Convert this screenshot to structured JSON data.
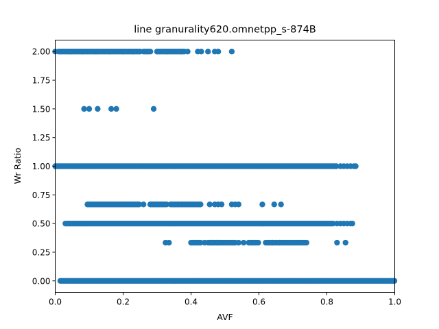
{
  "chart_data": {
    "type": "scatter",
    "title": "line granurality620.omnetpp_s-874B",
    "xlabel": "AVF",
    "ylabel": "Wr Ratio",
    "xlim": [
      0.0,
      1.0
    ],
    "ylim": [
      -0.1,
      2.1
    ],
    "x_ticks": [
      "0.0",
      "0.2",
      "0.4",
      "0.6",
      "0.8",
      "1.0"
    ],
    "y_ticks": [
      "0.00",
      "0.25",
      "0.50",
      "0.75",
      "1.00",
      "1.25",
      "1.50",
      "1.75",
      "2.00"
    ],
    "grid": false,
    "color": "#1f77b4",
    "series": [
      {
        "y": 2.0,
        "x_ranges": [
          [
            0.01,
            0.25
          ],
          [
            0.26,
            0.28
          ],
          [
            0.3,
            0.38
          ]
        ],
        "x_points": [
          0.0,
          0.045,
          0.08,
          0.12,
          0.16,
          0.2,
          0.23,
          0.3,
          0.33,
          0.37,
          0.39,
          0.42,
          0.43,
          0.45,
          0.47,
          0.48,
          0.52
        ]
      },
      {
        "y": 1.5,
        "x_ranges": [],
        "x_points": [
          0.085,
          0.1,
          0.125,
          0.165,
          0.18,
          0.29
        ]
      },
      {
        "y": 1.0,
        "x_ranges": [
          [
            0.0,
            0.83
          ]
        ],
        "x_points": [
          0.84,
          0.85,
          0.86,
          0.87,
          0.88,
          0.885
        ]
      },
      {
        "y": 0.6667,
        "x_ranges": [
          [
            0.095,
            0.25
          ],
          [
            0.28,
            0.33
          ],
          [
            0.34,
            0.43
          ]
        ],
        "x_points": [
          0.26,
          0.455,
          0.47,
          0.48,
          0.49,
          0.52,
          0.53,
          0.54,
          0.61,
          0.645,
          0.665
        ]
      },
      {
        "y": 0.5,
        "x_ranges": [
          [
            0.03,
            0.82
          ]
        ],
        "x_points": [
          0.83,
          0.84,
          0.85,
          0.86,
          0.87,
          0.875
        ]
      },
      {
        "y": 0.3333,
        "x_ranges": [
          [
            0.4,
            0.43
          ],
          [
            0.45,
            0.53
          ],
          [
            0.57,
            0.6
          ],
          [
            0.62,
            0.74
          ]
        ],
        "x_points": [
          0.325,
          0.335,
          0.44,
          0.46,
          0.48,
          0.54,
          0.555,
          0.64,
          0.66,
          0.83,
          0.855
        ]
      },
      {
        "y": 0.0,
        "x_ranges": [
          [
            0.015,
            1.0
          ]
        ],
        "x_points": []
      }
    ]
  }
}
